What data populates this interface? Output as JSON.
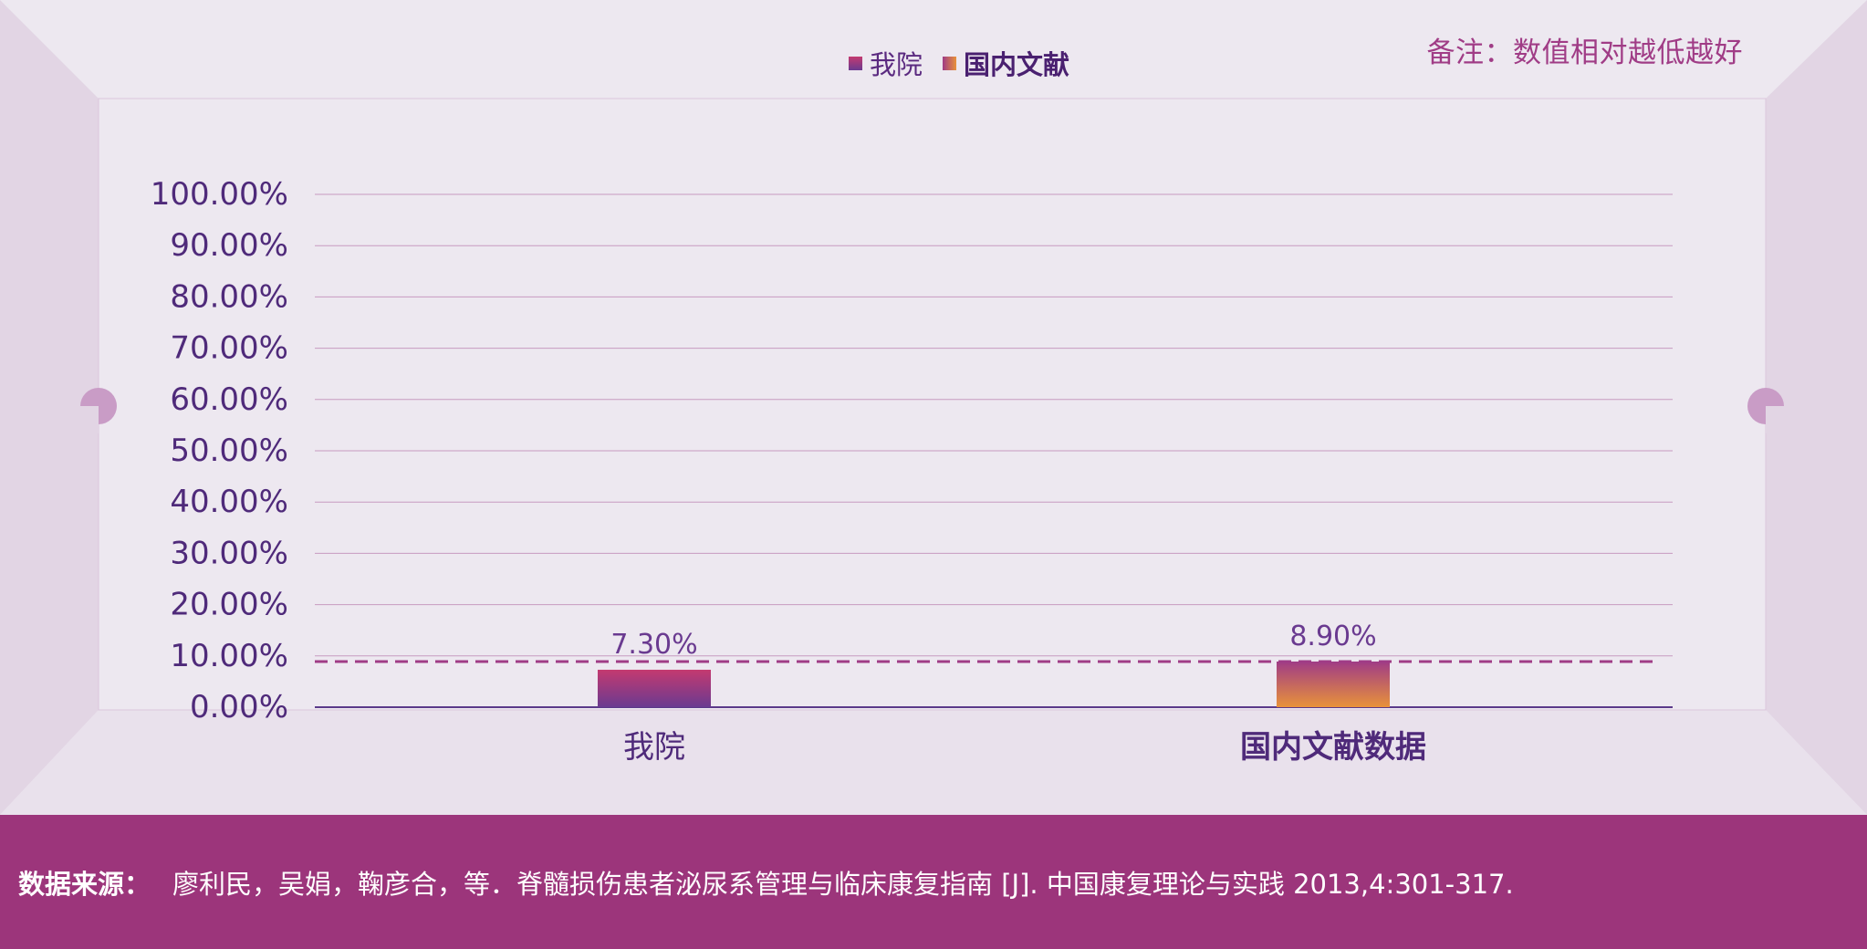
{
  "note": "备注：数值相对越低越好",
  "legend": [
    {
      "label": "我院",
      "color": "#9c357b",
      "bold": false
    },
    {
      "label": "国内文献",
      "color": "#e08a38",
      "bold": true
    }
  ],
  "chart_data": {
    "type": "bar",
    "categories": [
      "我院",
      "国内文献数据"
    ],
    "series": [
      {
        "name": "我院",
        "values": [
          7.3,
          null
        ]
      },
      {
        "name": "国内文献",
        "values": [
          null,
          8.9
        ]
      }
    ],
    "data_labels": [
      "7.30%",
      "8.90%"
    ],
    "yticks": [
      "100.00%",
      "90.00%",
      "80.00%",
      "70.00%",
      "60.00%",
      "50.00%",
      "40.00%",
      "30.00%",
      "20.00%",
      "10.00%",
      "0.00%"
    ],
    "ylim": [
      0,
      100
    ],
    "reference_line": 8.9,
    "grid": true,
    "legend_position": "top-center",
    "colors": {
      "our_hospital": [
        "#c43a70",
        "#6a3a90"
      ],
      "literature": [
        "#a03c86",
        "#e8923a"
      ],
      "axis_text": "#4f2a7a",
      "grid": "#c79ac0"
    }
  },
  "footer": {
    "label": "数据来源：",
    "text": "廖利民，吴娟，鞠彦合，等．脊髓损伤患者泌尿系管理与临床康复指南 [J]. 中国康复理论与实践 2013,4:301-317."
  }
}
